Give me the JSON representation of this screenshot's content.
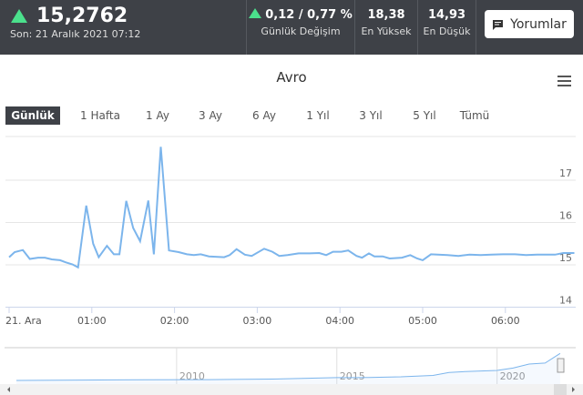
{
  "header": {
    "price": "15,2762",
    "last": "Son: 21 Aralık 2021 07:12",
    "change": "0,12 / 0,77 %",
    "change_label": "Günlük Değişim",
    "high": "18,38",
    "high_label": "En Yüksek",
    "low": "14,93",
    "low_label": "En Düşük",
    "comments_label": "Yorumlar",
    "comments_icon": "comment-icon",
    "up_color": "#4be08c"
  },
  "chart_title": "Avro",
  "ranges": [
    {
      "label": "Günlük",
      "selected": true
    },
    {
      "label": "1 Hafta"
    },
    {
      "label": "1 Ay"
    },
    {
      "label": "3 Ay"
    },
    {
      "label": "6 Ay"
    },
    {
      "label": "1 Yıl"
    },
    {
      "label": "3 Yıl"
    },
    {
      "label": "5 Yıl"
    },
    {
      "label": "Tümü"
    }
  ],
  "chart_data": {
    "type": "line",
    "line_color": "#7cb5ec",
    "grid": true,
    "ylim": [
      14,
      18
    ],
    "yticks": [
      "14",
      "15",
      "16",
      "17"
    ],
    "xticks": [
      "21. Ara",
      "01:00",
      "02:00",
      "03:00",
      "04:00",
      "05:00",
      "06:00"
    ],
    "xlim": [
      "00:00",
      "06:50"
    ],
    "x": [
      "00:00",
      "00:04",
      "00:10",
      "00:15",
      "00:21",
      "00:26",
      "00:31",
      "00:37",
      "00:41",
      "00:46",
      "00:50",
      "00:56",
      "01:01",
      "01:05",
      "01:11",
      "01:16",
      "01:20",
      "01:25",
      "01:30",
      "01:35",
      "01:41",
      "01:45",
      "01:50",
      "01:56",
      "02:03",
      "02:09",
      "02:14",
      "02:19",
      "02:25",
      "02:36",
      "02:40",
      "02:45",
      "02:51",
      "02:56",
      "03:05",
      "03:11",
      "03:16",
      "03:22",
      "03:30",
      "03:38",
      "03:45",
      "03:50",
      "03:55",
      "04:01",
      "04:06",
      "04:12",
      "04:16",
      "04:21",
      "04:25",
      "04:31",
      "04:36",
      "04:45",
      "04:51",
      "04:56",
      "05:00",
      "05:06",
      "05:11",
      "05:18",
      "05:26",
      "05:34",
      "05:42",
      "05:50",
      "05:58",
      "06:07",
      "06:15",
      "06:23",
      "06:36",
      "06:42",
      "06:50"
    ],
    "y": [
      15.18,
      15.3,
      15.35,
      15.14,
      15.17,
      15.17,
      15.13,
      15.11,
      15.06,
      15.01,
      14.94,
      16.4,
      15.5,
      15.18,
      15.45,
      15.25,
      15.25,
      16.51,
      15.87,
      15.56,
      16.52,
      15.25,
      17.79,
      15.34,
      15.3,
      15.25,
      15.23,
      15.25,
      15.2,
      15.18,
      15.23,
      15.37,
      15.24,
      15.21,
      15.38,
      15.31,
      15.21,
      15.23,
      15.27,
      15.27,
      15.28,
      15.23,
      15.31,
      15.31,
      15.34,
      15.21,
      15.17,
      15.27,
      15.2,
      15.2,
      15.15,
      15.17,
      15.23,
      15.15,
      15.11,
      15.25,
      15.24,
      15.23,
      15.21,
      15.24,
      15.23,
      15.24,
      15.25,
      15.25,
      15.23,
      15.24,
      15.24,
      15.28,
      15.28
    ],
    "navigator": {
      "xticks": [
        "2010",
        "2015",
        "2020"
      ],
      "x": [
        2005,
        2007,
        2009,
        2011,
        2013,
        2015,
        2016,
        2017,
        2018,
        2018.5,
        2019,
        2020,
        2020.5,
        2021,
        2021.5,
        2021.97
      ],
      "y": [
        1.8,
        2.0,
        2.1,
        2.2,
        2.5,
        3.2,
        3.3,
        3.6,
        4.3,
        5.8,
        6.2,
        6.8,
        8.0,
        10.0,
        10.5,
        15.3
      ]
    }
  }
}
